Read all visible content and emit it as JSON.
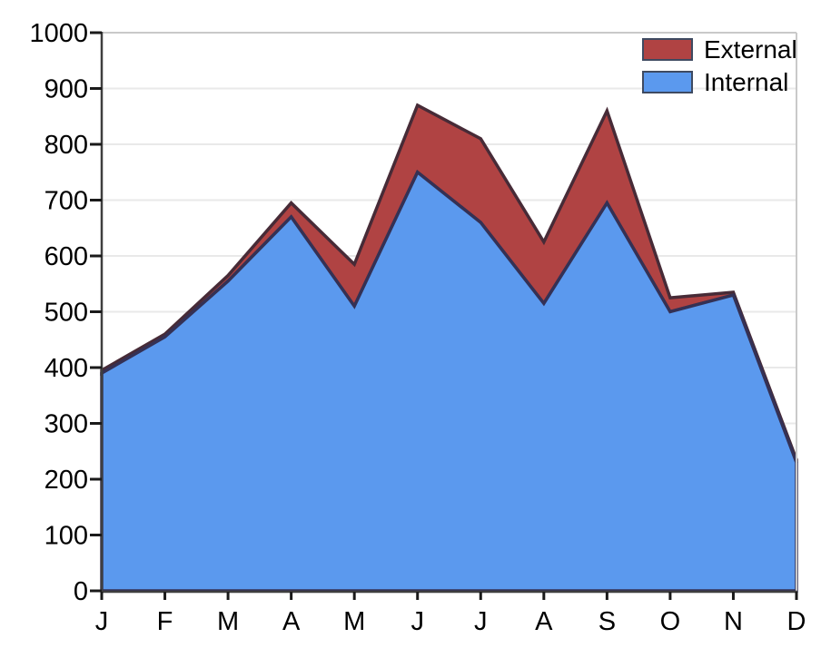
{
  "chart_data": {
    "type": "area",
    "stacked": true,
    "title": "",
    "xlabel": "",
    "ylabel": "",
    "x_categories": [
      "J",
      "F",
      "M",
      "A",
      "M",
      "J",
      "J",
      "A",
      "S",
      "O",
      "N",
      "D"
    ],
    "series": [
      {
        "name": "External",
        "fill": "#b04343",
        "stroke": "#472b37",
        "values": [
          5,
          5,
          10,
          25,
          75,
          120,
          150,
          110,
          165,
          25,
          5,
          5
        ]
      },
      {
        "name": "Internal",
        "fill": "#5b99ee",
        "stroke": "#343155",
        "values": [
          390,
          455,
          555,
          670,
          510,
          750,
          660,
          515,
          695,
          500,
          530,
          230
        ]
      }
    ],
    "ylim": [
      0,
      1000
    ],
    "ytick_step": 100,
    "grid": true,
    "legend_position": "top-right",
    "axis_style": {
      "label_color": "#000000",
      "grid_color": "#e9e9e9",
      "plot_border_color": "#c9c9c9",
      "axis_line_color": "#3f3f3f",
      "tick_color": "#1a1a1a"
    }
  }
}
